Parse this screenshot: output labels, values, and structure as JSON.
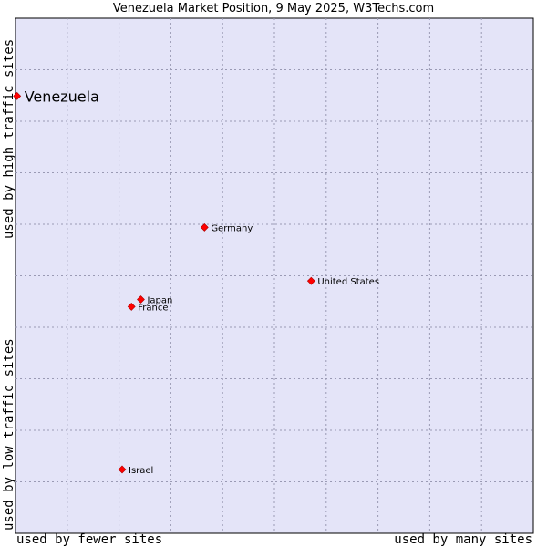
{
  "title": "Venezuela Market Position, 9 May 2025, W3Techs.com",
  "axis_labels": {
    "x_left": "used by fewer sites",
    "x_right": "used by many sites",
    "y_top": "used by high traffic sites",
    "y_bottom": "used by low traffic sites"
  },
  "colors": {
    "plot_background": "#e4e4f8",
    "grid": "#9a9ab4",
    "point": "#ff0000"
  },
  "chart_data": {
    "type": "scatter",
    "title": "Venezuela Market Position, 9 May 2025, W3Techs.com",
    "xlim": [
      0,
      100
    ],
    "ylim": [
      0,
      100
    ],
    "grid": true,
    "legend": "none",
    "points": [
      {
        "label": "Venezuela",
        "x": 0.3,
        "y": 84.9,
        "highlight": true
      },
      {
        "label": "Germany",
        "x": 36.5,
        "y": 59.4,
        "highlight": false
      },
      {
        "label": "United States",
        "x": 57.1,
        "y": 49.0,
        "highlight": false
      },
      {
        "label": "Japan",
        "x": 24.2,
        "y": 45.4,
        "highlight": false
      },
      {
        "label": "France",
        "x": 22.4,
        "y": 44.0,
        "highlight": false
      },
      {
        "label": "Israel",
        "x": 20.6,
        "y": 12.4,
        "highlight": false
      }
    ]
  }
}
